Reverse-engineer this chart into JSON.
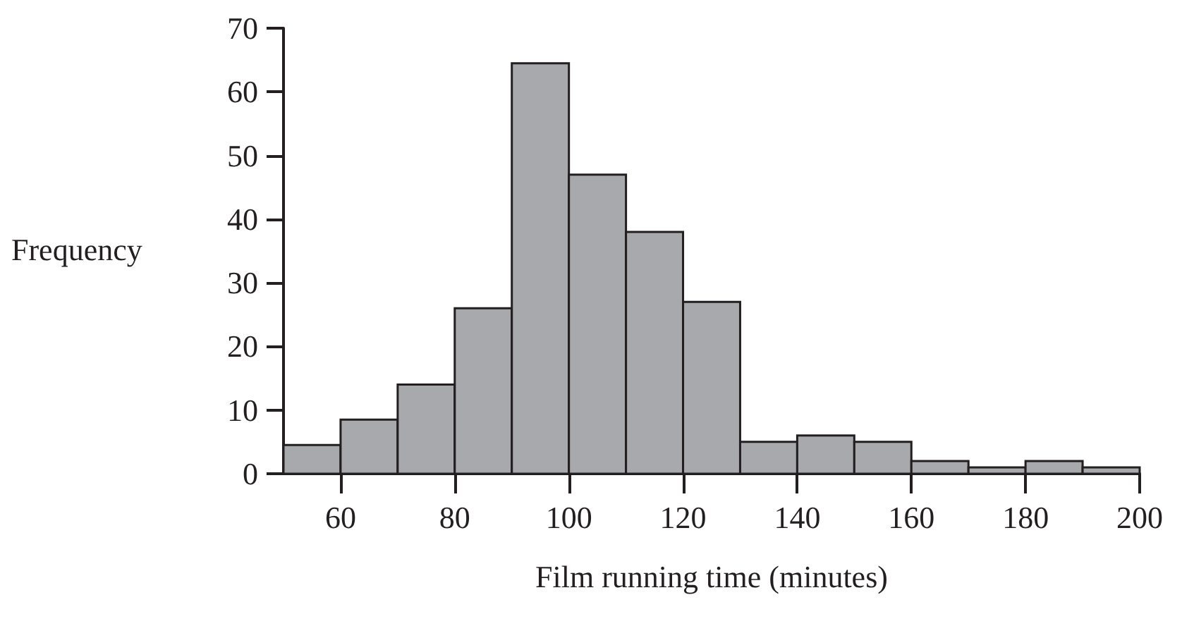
{
  "chart_data": {
    "type": "histogram",
    "xlabel": "Film running time (minutes)",
    "ylabel": "Frequency",
    "bins": [
      50,
      60,
      70,
      80,
      90,
      100,
      110,
      120,
      130,
      140,
      150,
      160,
      170,
      180,
      190,
      200
    ],
    "values": [
      4.5,
      8.5,
      14,
      26,
      64.5,
      47,
      38,
      27,
      5,
      6,
      5,
      2,
      1,
      2,
      1
    ],
    "color": "#a7a9ac",
    "xlim": [
      50,
      200
    ],
    "xticks": [
      60,
      80,
      100,
      120,
      140,
      160,
      180,
      200
    ],
    "ylim": [
      0,
      70
    ],
    "yticks": [
      0,
      10,
      20,
      30,
      40,
      50,
      60,
      70
    ],
    "grid": false
  }
}
